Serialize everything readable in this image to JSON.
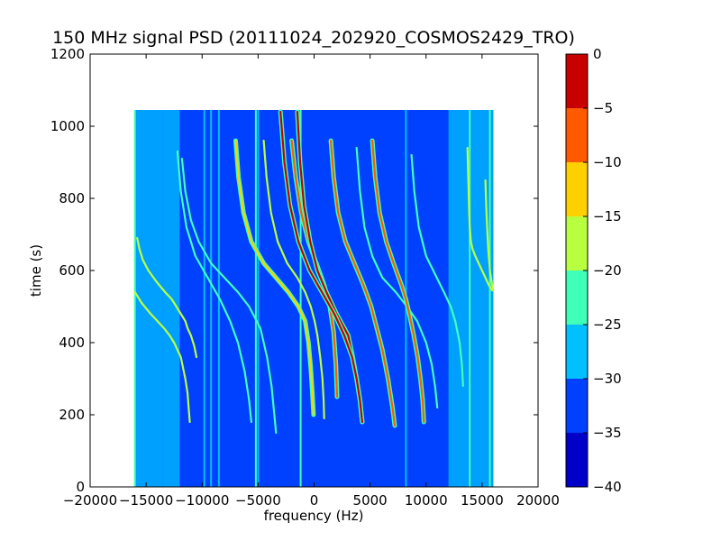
{
  "chart_data": {
    "type": "heatmap",
    "title": "150 MHz signal PSD (20111024_202920_COSMOS2429_TRO)",
    "xlabel": "frequency (Hz)",
    "ylabel": "time (s)",
    "xlim": [
      -20000,
      20000
    ],
    "ylim": [
      0,
      1200
    ],
    "xticks": [
      -20000,
      -15000,
      -10000,
      -5000,
      0,
      5000,
      10000,
      15000,
      20000
    ],
    "xtick_labels": [
      "−20000",
      "−15000",
      "−10000",
      "−5000",
      "0",
      "5000",
      "10000",
      "15000",
      "20000"
    ],
    "yticks": [
      0,
      200,
      400,
      600,
      800,
      1000,
      1200
    ],
    "ytick_labels": [
      "0",
      "200",
      "400",
      "600",
      "800",
      "1000",
      "1200"
    ],
    "data_extent": {
      "x": [
        -16000,
        16000
      ],
      "y": [
        0,
        1045
      ]
    },
    "background_level": -35,
    "grid": false,
    "colorbar": {
      "ticks": [
        0,
        -5,
        -10,
        -15,
        -20,
        -25,
        -30,
        -35,
        -40
      ],
      "tick_labels": [
        "0",
        "−5",
        "−10",
        "−15",
        "−20",
        "−25",
        "−30",
        "−35",
        "−40"
      ],
      "bins": [
        {
          "min": -40,
          "max": -35,
          "color": "#0000c8"
        },
        {
          "min": -35,
          "max": -30,
          "color": "#0040ff"
        },
        {
          "min": -30,
          "max": -25,
          "color": "#00c0ff"
        },
        {
          "min": -25,
          "max": -20,
          "color": "#40ffb8"
        },
        {
          "min": -20,
          "max": -15,
          "color": "#b8ff40"
        },
        {
          "min": -15,
          "max": -10,
          "color": "#ffd000"
        },
        {
          "min": -10,
          "max": -5,
          "color": "#ff5a00"
        },
        {
          "min": -5,
          "max": 0,
          "color": "#c80000"
        }
      ]
    },
    "noise_bands": [
      {
        "x0": -16000,
        "x1": -13500,
        "level": -30
      },
      {
        "x0": -13500,
        "x1": -12000,
        "level": -30
      },
      {
        "x0": 12000,
        "x1": 13800,
        "level": -30
      },
      {
        "x0": 13800,
        "x1": 16000,
        "level": -30
      }
    ],
    "vertical_lines": [
      {
        "x": -16000,
        "level": -25
      },
      {
        "x": -9800,
        "level": -30
      },
      {
        "x": -9200,
        "level": -30
      },
      {
        "x": -8500,
        "level": -30
      },
      {
        "x": -5200,
        "level": -25
      },
      {
        "x": -5000,
        "level": -30
      },
      {
        "x": -1200,
        "level": -25
      },
      {
        "x": 8200,
        "level": -30
      },
      {
        "x": 13900,
        "level": -25
      },
      {
        "x": 15700,
        "level": -25
      }
    ],
    "series": [
      {
        "t": [
          1040,
          900,
          780,
          680,
          600,
          540,
          480,
          420,
          360,
          300,
          240,
          180
        ],
        "f": [
          -3000,
          -2650,
          -2150,
          -1400,
          -400,
          700,
          1800,
          2700,
          3400,
          3800,
          4100,
          4300
        ],
        "level": 0
      },
      {
        "t": [
          1040,
          900,
          780,
          680,
          600,
          540,
          480,
          420,
          360,
          300,
          240,
          180
        ],
        "f": [
          -1500,
          -1250,
          -900,
          -350,
          300,
          1100,
          2000,
          3050,
          3450,
          3800,
          4100,
          4300
        ],
        "level": -5
      },
      {
        "t": [
          960,
          860,
          760,
          680,
          620,
          560,
          520,
          480,
          420,
          360,
          300,
          240,
          180
        ],
        "f": [
          5200,
          5450,
          5850,
          6450,
          7100,
          7800,
          8200,
          8500,
          8900,
          9250,
          9500,
          9700,
          9800
        ],
        "level": -10
      },
      {
        "t": [
          960,
          860,
          760,
          680,
          620,
          560,
          500,
          430,
          340,
          250
        ],
        "f": [
          -2000,
          -1650,
          -1150,
          -500,
          200,
          900,
          1400,
          1750,
          1950,
          2050
        ],
        "level": -10
      },
      {
        "t": [
          960,
          860,
          760,
          680,
          620,
          560,
          500,
          440,
          380,
          300,
          220,
          170
        ],
        "f": [
          1500,
          1750,
          2150,
          2800,
          3600,
          4400,
          5100,
          5600,
          6100,
          6600,
          7000,
          7200
        ],
        "level": -10
      },
      {
        "t": [
          960,
          860,
          760,
          680,
          620,
          580,
          540,
          500,
          460,
          400,
          330,
          260,
          200
        ],
        "f": [
          -7000,
          -6750,
          -6300,
          -5600,
          -4500,
          -3400,
          -2300,
          -1400,
          -800,
          -500,
          -300,
          -150,
          -50
        ],
        "level": -15
      },
      {
        "t": [
          960,
          860,
          760,
          680,
          620,
          580,
          540,
          500,
          460,
          420,
          360,
          300,
          240,
          190
        ],
        "f": [
          -4500,
          -4250,
          -3850,
          -3250,
          -2400,
          -1500,
          -800,
          -300,
          50,
          300,
          550,
          750,
          850,
          900
        ],
        "level": -20
      },
      {
        "t": [
          910,
          820,
          740,
          680,
          620,
          580,
          540,
          500,
          440,
          360,
          280,
          200,
          150
        ],
        "f": [
          -11800,
          -11500,
          -11000,
          -10300,
          -9200,
          -8000,
          -6800,
          -5800,
          -4800,
          -4200,
          -3800,
          -3550,
          -3400
        ],
        "level": -25
      },
      {
        "t": [
          930,
          820,
          720,
          640,
          580,
          520,
          460,
          400,
          320,
          240,
          180
        ],
        "f": [
          -12200,
          -11900,
          -11400,
          -10600,
          -9500,
          -8400,
          -7500,
          -6800,
          -6200,
          -5800,
          -5600
        ],
        "level": -25
      },
      {
        "t": [
          940,
          820,
          720,
          640,
          580,
          540,
          500,
          460,
          400,
          340,
          280,
          220
        ],
        "f": [
          3800,
          4100,
          4500,
          5200,
          6100,
          7300,
          8300,
          9200,
          10000,
          10500,
          10800,
          11000
        ],
        "level": -25
      },
      {
        "t": [
          920,
          820,
          720,
          640,
          590,
          540,
          500,
          460,
          400,
          340,
          280
        ],
        "f": [
          8700,
          8950,
          9350,
          10000,
          10800,
          11600,
          12200,
          12600,
          13000,
          13200,
          13300
        ],
        "level": -25
      },
      {
        "t": [
          690,
          660,
          630,
          600,
          570,
          540,
          520,
          500,
          480,
          460,
          440,
          420,
          390,
          360
        ],
        "f": [
          -15800,
          -15600,
          -15300,
          -14800,
          -14100,
          -13300,
          -12700,
          -12300,
          -11900,
          -11500,
          -11300,
          -11000,
          -10700,
          -10500
        ],
        "level": -20
      },
      {
        "t": [
          540,
          510,
          480,
          460,
          440,
          420,
          400,
          380,
          360,
          330,
          300,
          260,
          220,
          180
        ],
        "f": [
          -16000,
          -15400,
          -14600,
          -14000,
          -13400,
          -12900,
          -12500,
          -12200,
          -11900,
          -11700,
          -11500,
          -11300,
          -11200,
          -11100
        ],
        "level": -20
      },
      {
        "t": [
          940,
          880,
          820,
          760,
          720,
          680,
          660,
          640,
          620,
          600,
          580,
          560,
          545
        ],
        "f": [
          13700,
          13750,
          13800,
          13850,
          13900,
          14000,
          14150,
          14400,
          14700,
          15000,
          15300,
          15600,
          15900
        ],
        "level": -20
      },
      {
        "t": [
          850,
          800,
          760,
          720,
          690,
          660,
          640,
          620,
          600,
          580,
          560,
          545
        ],
        "f": [
          15300,
          15350,
          15400,
          15450,
          15500,
          15550,
          15600,
          15650,
          15700,
          15800,
          15900,
          16000
        ],
        "level": -20
      }
    ]
  }
}
